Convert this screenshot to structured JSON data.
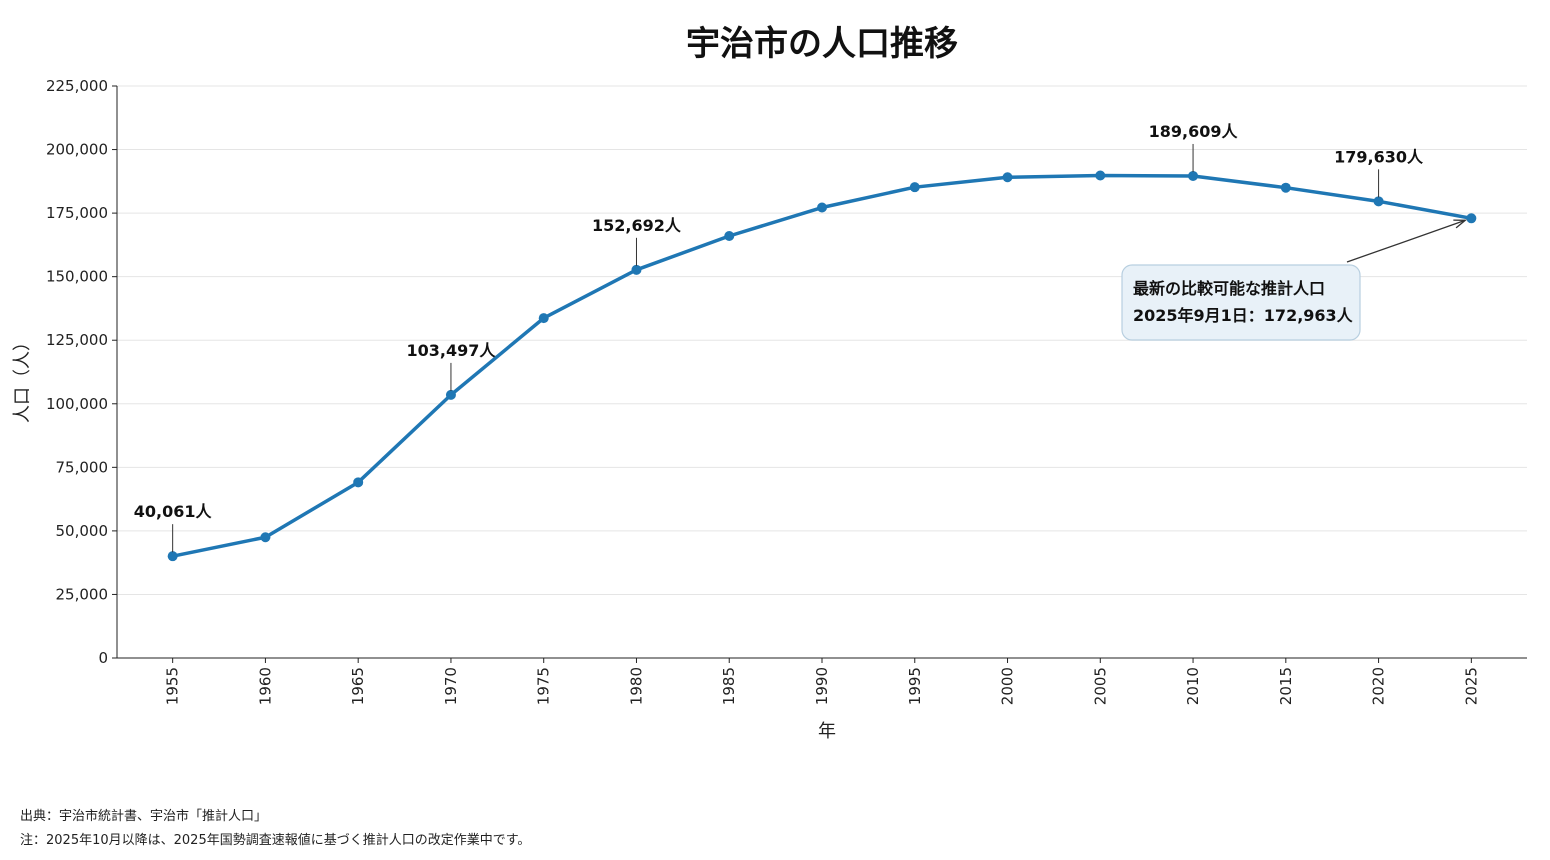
{
  "chart_data": {
    "type": "line",
    "title": "宇治市の人口推移",
    "xlabel": "年",
    "ylabel": "人口（人）",
    "ylim": [
      0,
      225000
    ],
    "yticks": [
      0,
      25000,
      50000,
      75000,
      100000,
      125000,
      150000,
      175000,
      200000,
      225000
    ],
    "ytick_labels": [
      "0",
      "25,000",
      "50,000",
      "75,000",
      "100,000",
      "125,000",
      "150,000",
      "175,000",
      "200,000",
      "225,000"
    ],
    "x": [
      1955,
      1960,
      1965,
      1970,
      1975,
      1980,
      1985,
      1990,
      1995,
      2000,
      2005,
      2010,
      2015,
      2020,
      2025
    ],
    "xtick_labels": [
      "1955",
      "1960",
      "1965",
      "1970",
      "1975",
      "1980",
      "1985",
      "1990",
      "1995",
      "2000",
      "2005",
      "2010",
      "2015",
      "2020",
      "2025"
    ],
    "series": [
      {
        "color": "#1f77b4",
        "values": [
          40061,
          47500,
          69100,
          103497,
          133700,
          152692,
          166000,
          177200,
          185200,
          189100,
          189800,
          189609,
          185000,
          179630,
          172963
        ]
      }
    ],
    "data_labels": [
      {
        "x": 1955,
        "value": 40061,
        "text": "40,061人"
      },
      {
        "x": 1970,
        "value": 103497,
        "text": "103,497人"
      },
      {
        "x": 1980,
        "value": 152692,
        "text": "152,692人"
      },
      {
        "x": 2010,
        "value": 189609,
        "text": "189,609人"
      },
      {
        "x": 2020,
        "value": 179630,
        "text": "179,630人"
      }
    ],
    "annotation": {
      "target_x": 2025,
      "target_value": 172963,
      "lines": [
        "最新の比較可能な推計人口",
        "2025年9月1日：172,963人"
      ]
    },
    "grid": "horizontal"
  },
  "footnotes": {
    "source": "出典：宇治市統計書、宇治市「推計人口」",
    "note": "注：2025年10月以降は、2025年国勢調査速報値に基づく推計人口の改定作業中です。"
  }
}
